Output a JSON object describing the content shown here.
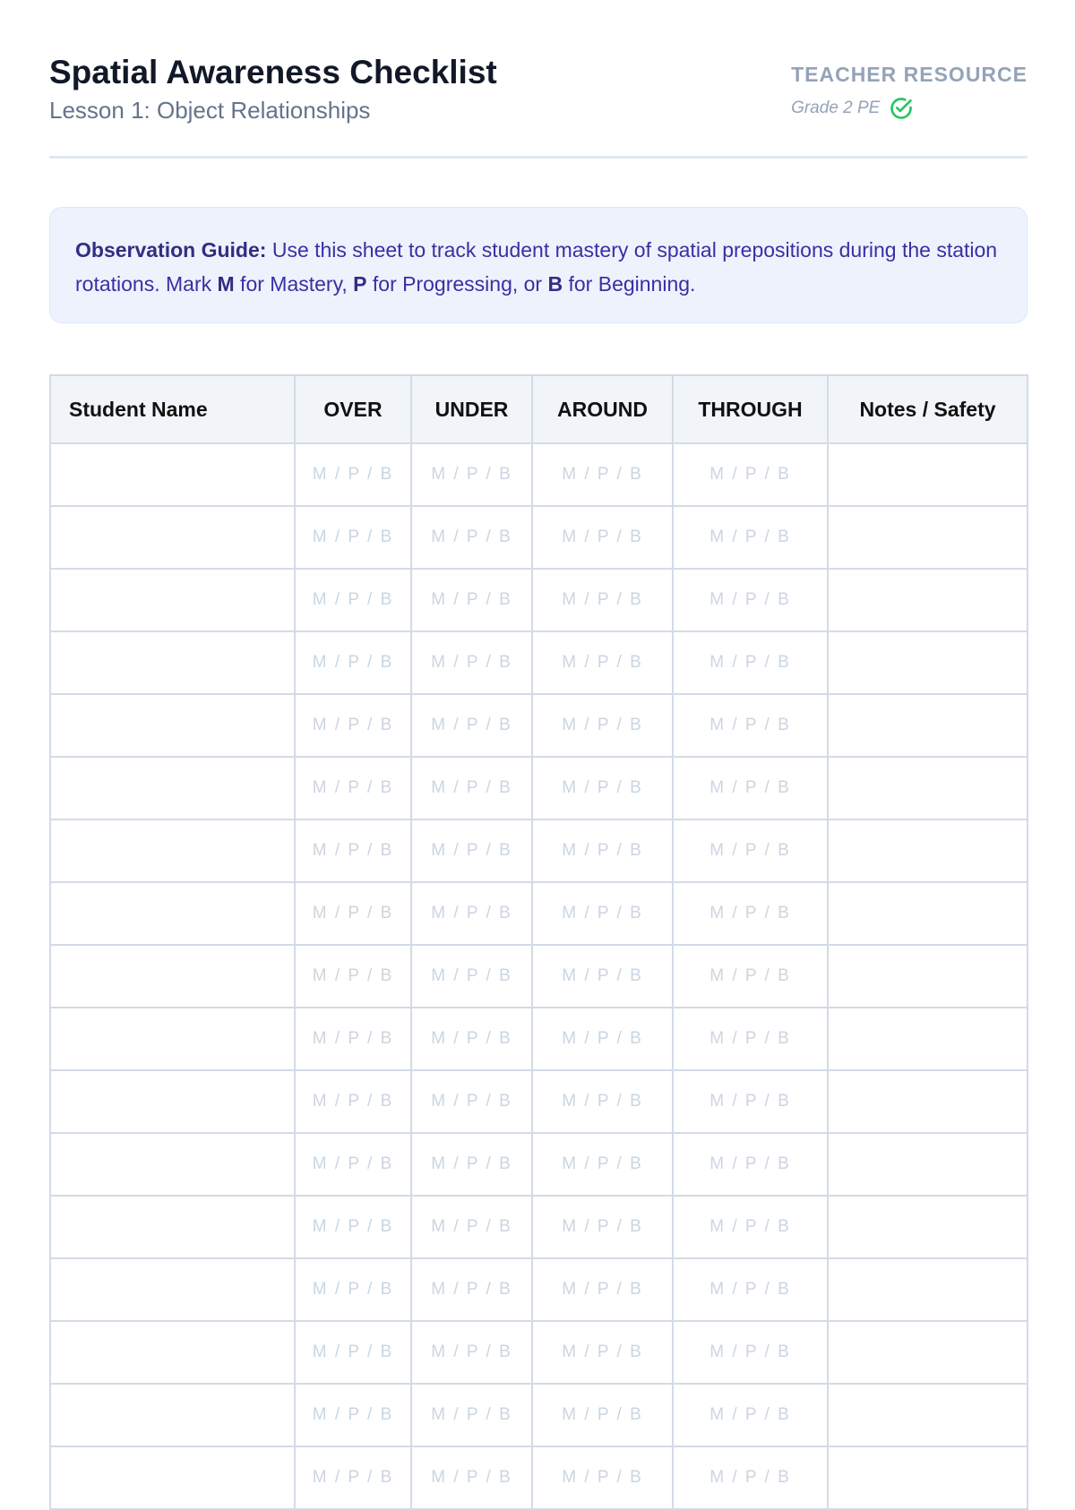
{
  "header": {
    "title": "Spatial Awareness Checklist",
    "subtitle": "Lesson 1: Object Relationships",
    "label": "TEACHER RESOURCE",
    "grade": "Grade 2 PE",
    "check_icon_color": "#22c55e"
  },
  "guide": {
    "lead": "Observation Guide:",
    "text1": " Use this sheet to track student mastery of spatial prepositions during the station rotations. Mark ",
    "m": "M",
    "text2": " for Mastery, ",
    "p": "P",
    "text3": " for Progressing, or ",
    "b": "B",
    "text4": " for Beginning."
  },
  "table": {
    "columns": [
      "Student Name",
      "OVER",
      "UNDER",
      "AROUND",
      "THROUGH",
      "Notes / Safety"
    ],
    "placeholder": "M / P / B",
    "row_count": 17
  }
}
